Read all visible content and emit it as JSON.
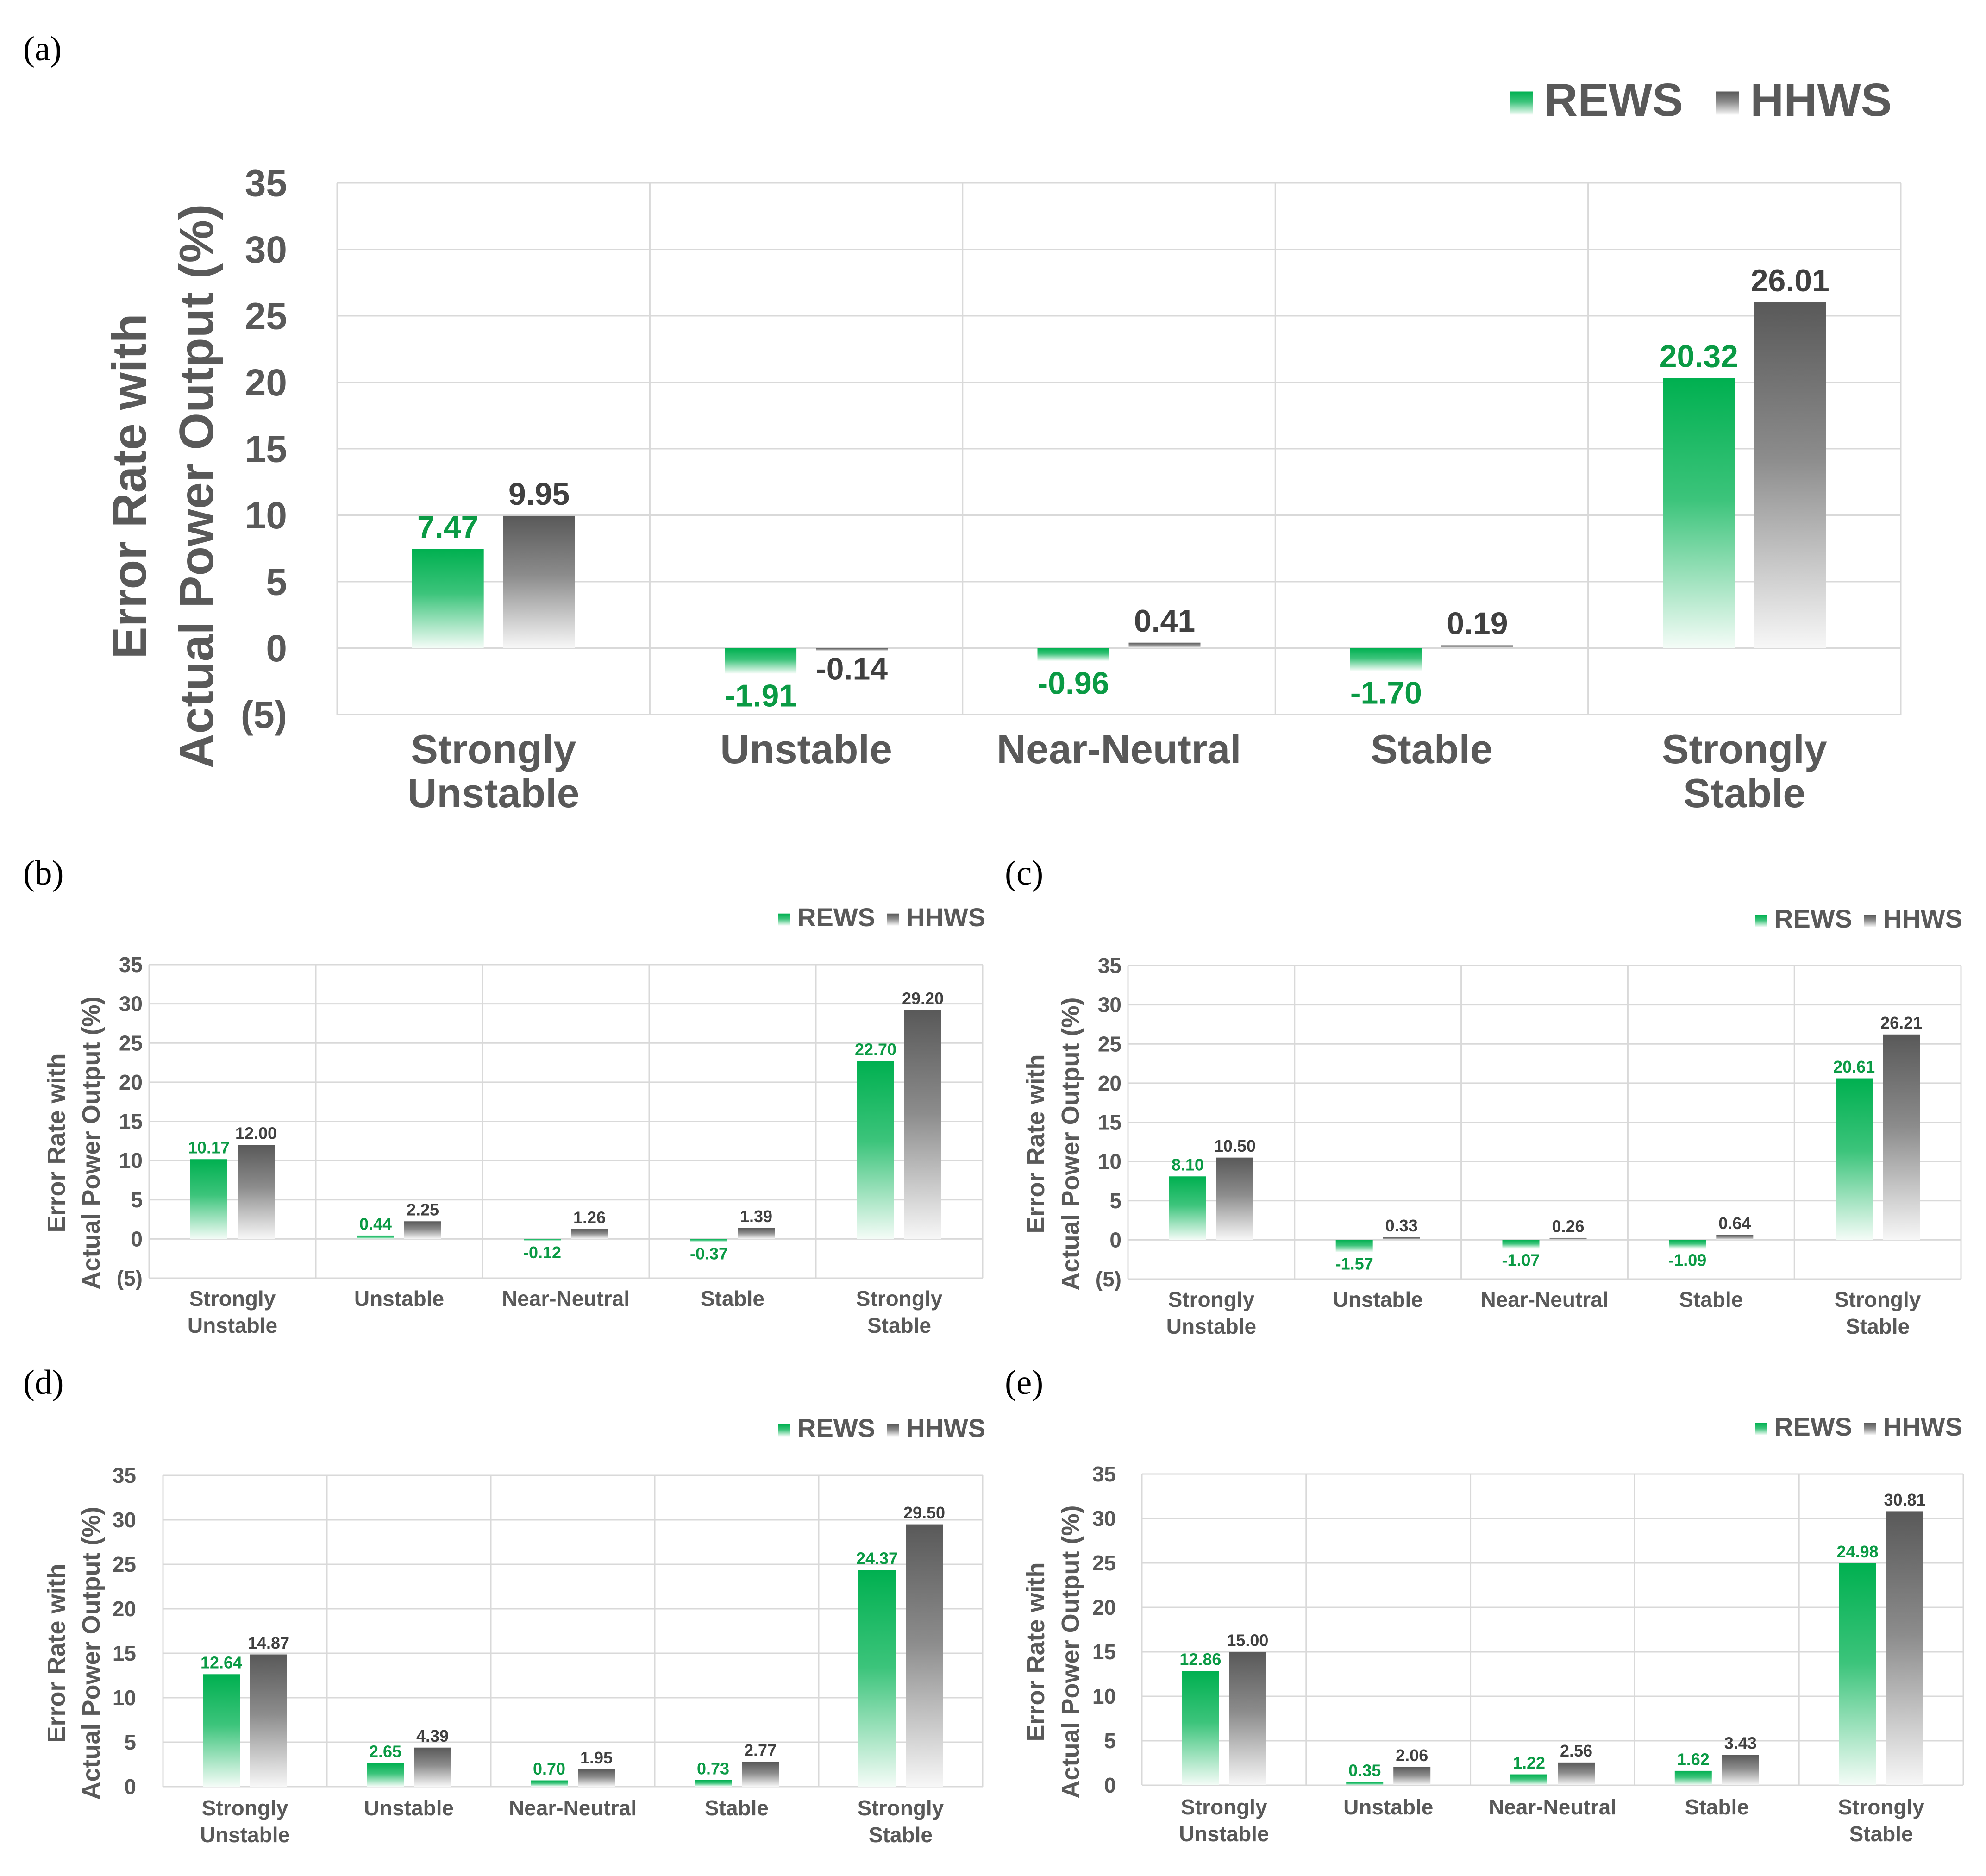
{
  "colors": {
    "rews": "#00b050",
    "rews_label": "#0a9a44",
    "hhws": "#595959",
    "hhws_label": "#404040",
    "grid": "#d9d9d9",
    "text": "#595959"
  },
  "chart_data": [
    {
      "panel": "(a)",
      "type": "bar",
      "categories": [
        [
          "Strongly",
          "Unstable"
        ],
        [
          "Unstable"
        ],
        [
          "Near-Neutral"
        ],
        [
          "Stable"
        ],
        [
          "Strongly",
          "Stable"
        ]
      ],
      "series": [
        {
          "name": "REWS",
          "values": [
            7.47,
            -1.91,
            -0.96,
            -1.7,
            20.32
          ],
          "labels": [
            "7.47",
            "-1.91",
            "-0.96",
            "-1.70",
            "20.32"
          ]
        },
        {
          "name": "HHWS",
          "values": [
            9.95,
            -0.14,
            0.41,
            0.19,
            26.01
          ],
          "labels": [
            "9.95",
            "-0.14",
            "0.41",
            "0.19",
            "26.01"
          ]
        }
      ],
      "ylabel": [
        "Error Rate with",
        "Actual Power Output (%)"
      ],
      "yticks": [
        "35",
        "30",
        "25",
        "20",
        "15",
        "10",
        "5",
        "0",
        "(5)"
      ],
      "ylim": [
        -5,
        35
      ],
      "legend": "top-right"
    },
    {
      "panel": "(b)",
      "type": "bar",
      "categories": [
        [
          "Strongly",
          "Unstable"
        ],
        [
          "Unstable"
        ],
        [
          "Near-Neutral"
        ],
        [
          "Stable"
        ],
        [
          "Strongly",
          "Stable"
        ]
      ],
      "series": [
        {
          "name": "REWS",
          "values": [
            10.17,
            0.44,
            -0.12,
            -0.37,
            22.7
          ],
          "labels": [
            "10.17",
            "0.44",
            "-0.12",
            "-0.37",
            "22.70"
          ]
        },
        {
          "name": "HHWS",
          "values": [
            12.0,
            2.25,
            1.26,
            1.39,
            29.2
          ],
          "labels": [
            "12.00",
            "2.25",
            "1.26",
            "1.39",
            "29.20"
          ]
        }
      ],
      "ylabel": [
        "Error Rate with",
        "Actual Power Output (%)"
      ],
      "yticks": [
        "35",
        "30",
        "25",
        "20",
        "15",
        "10",
        "5",
        "0",
        "(5)"
      ],
      "ylim": [
        -5,
        35
      ],
      "legend": "top-right"
    },
    {
      "panel": "(c)",
      "type": "bar",
      "categories": [
        [
          "Strongly",
          "Unstable"
        ],
        [
          "Unstable"
        ],
        [
          "Near-Neutral"
        ],
        [
          "Stable"
        ],
        [
          "Strongly",
          "Stable"
        ]
      ],
      "series": [
        {
          "name": "REWS",
          "values": [
            8.1,
            -1.57,
            -1.07,
            -1.09,
            20.61
          ],
          "labels": [
            "8.10",
            "-1.57",
            "-1.07",
            "-1.09",
            "20.61"
          ]
        },
        {
          "name": "HHWS",
          "values": [
            10.5,
            0.33,
            0.26,
            0.64,
            26.21
          ],
          "labels": [
            "10.50",
            "0.33",
            "0.26",
            "0.64",
            "26.21"
          ]
        }
      ],
      "ylabel": [
        "Error Rate with",
        "Actual Power Output (%)"
      ],
      "yticks": [
        "35",
        "30",
        "25",
        "20",
        "15",
        "10",
        "5",
        "0",
        "(5)"
      ],
      "ylim": [
        -5,
        35
      ],
      "legend": "top-right"
    },
    {
      "panel": "(d)",
      "type": "bar",
      "categories": [
        [
          "Strongly",
          "Unstable"
        ],
        [
          "Unstable"
        ],
        [
          "Near-Neutral"
        ],
        [
          "Stable"
        ],
        [
          "Strongly",
          "Stable"
        ]
      ],
      "series": [
        {
          "name": "REWS",
          "values": [
            12.64,
            2.65,
            0.7,
            0.73,
            24.37
          ],
          "labels": [
            "12.64",
            "2.65",
            "0.70",
            "0.73",
            "24.37"
          ]
        },
        {
          "name": "HHWS",
          "values": [
            14.87,
            4.39,
            1.95,
            2.77,
            29.5
          ],
          "labels": [
            "14.87",
            "4.39",
            "1.95",
            "2.77",
            "29.50"
          ]
        }
      ],
      "ylabel": [
        "Error Rate with",
        "Actual Power Output (%)"
      ],
      "yticks": [
        "35",
        "30",
        "25",
        "20",
        "15",
        "10",
        "5",
        "0"
      ],
      "ylim": [
        0,
        35
      ],
      "legend": "top-right"
    },
    {
      "panel": "(e)",
      "type": "bar",
      "categories": [
        [
          "Strongly",
          "Unstable"
        ],
        [
          "Unstable"
        ],
        [
          "Near-Neutral"
        ],
        [
          "Stable"
        ],
        [
          "Strongly",
          "Stable"
        ]
      ],
      "series": [
        {
          "name": "REWS",
          "values": [
            12.86,
            0.35,
            1.22,
            1.62,
            24.98
          ],
          "labels": [
            "12.86",
            "0.35",
            "1.22",
            "1.62",
            "24.98"
          ]
        },
        {
          "name": "HHWS",
          "values": [
            15.0,
            2.06,
            2.56,
            3.43,
            30.81
          ],
          "labels": [
            "15.00",
            "2.06",
            "2.56",
            "3.43",
            "30.81"
          ]
        }
      ],
      "ylabel": [
        "Error Rate with",
        "Actual Power Output (%)"
      ],
      "yticks": [
        "35",
        "30",
        "25",
        "20",
        "15",
        "10",
        "5",
        "0"
      ],
      "ylim": [
        0,
        35
      ],
      "legend": "top-right"
    }
  ]
}
